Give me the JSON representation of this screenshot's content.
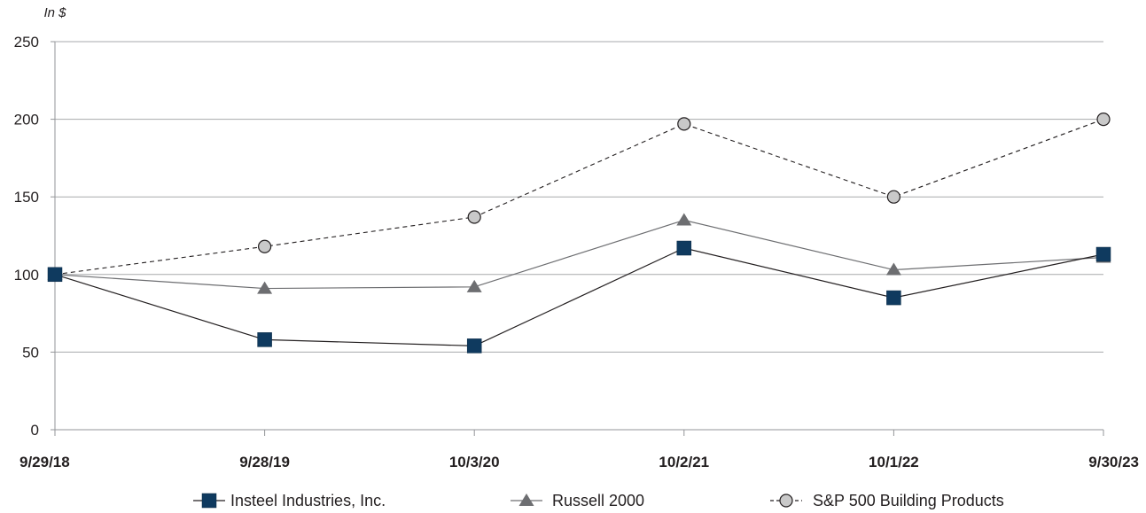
{
  "chart_data": {
    "type": "line",
    "unit_label": "In $",
    "x": [
      "9/29/18",
      "9/28/19",
      "10/3/20",
      "10/2/21",
      "10/1/22",
      "9/30/23"
    ],
    "ylim": [
      0,
      250
    ],
    "yticks": [
      0,
      50,
      100,
      150,
      200,
      250
    ],
    "grid": true,
    "legend_position": "bottom",
    "series": [
      {
        "name": "Insteel Industries, Inc.",
        "marker": "square",
        "line_style": "solid",
        "color": "#0f3a5f",
        "line_color": "#231f20",
        "values": [
          100,
          58,
          54,
          117,
          85,
          113
        ]
      },
      {
        "name": "Russell 2000",
        "marker": "triangle",
        "line_style": "solid",
        "color": "#6d6e71",
        "line_color": "#6d6e71",
        "values": [
          100,
          91,
          92,
          135,
          103,
          111
        ]
      },
      {
        "name": "S&P 500 Building Products",
        "marker": "circle",
        "line_style": "dashed",
        "color": "#c9c9c9",
        "line_color": "#231f20",
        "values": [
          100,
          118,
          137,
          197,
          150,
          200
        ]
      }
    ]
  }
}
